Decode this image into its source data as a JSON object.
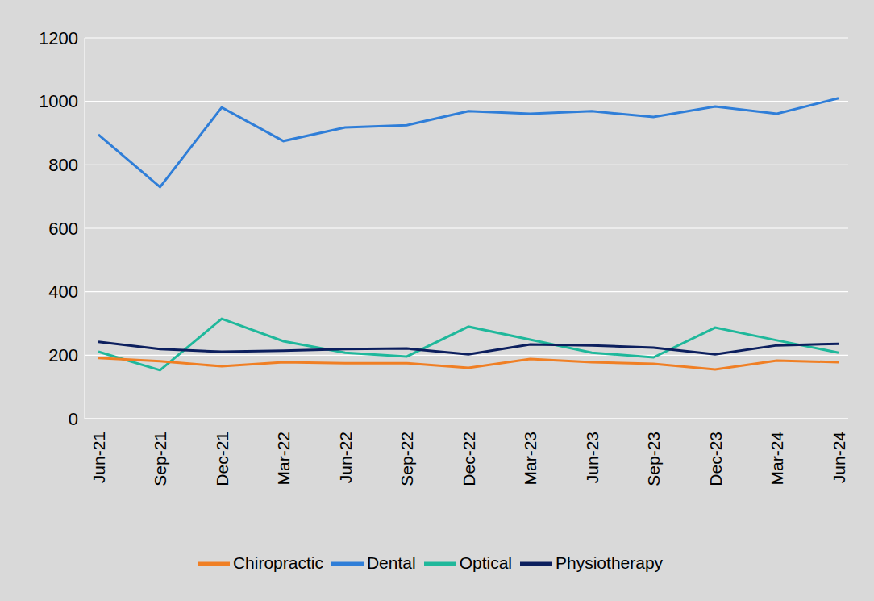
{
  "chart_data": {
    "type": "line",
    "categories": [
      "Jun-21",
      "Sep-21",
      "Dec-21",
      "Mar-22",
      "Jun-22",
      "Sep-22",
      "Dec-22",
      "Mar-23",
      "Jun-23",
      "Sep-23",
      "Dec-23",
      "Mar-24",
      "Jun-24"
    ],
    "series": [
      {
        "name": "Dental",
        "color": "#2f7ed8",
        "values": [
          895,
          730,
          981,
          875,
          918,
          925,
          969,
          961,
          969,
          951,
          984,
          961,
          1010
        ]
      },
      {
        "name": "Optical",
        "color": "#1fb89b",
        "values": [
          211,
          153,
          315,
          244,
          208,
          196,
          290,
          249,
          208,
          193,
          287,
          247,
          208
        ]
      },
      {
        "name": "Physiotherapy",
        "color": "#0c1f5e",
        "values": [
          242,
          219,
          211,
          214,
          219,
          221,
          203,
          234,
          231,
          224,
          203,
          231,
          236
        ]
      },
      {
        "name": "Chiropractic",
        "color": "#f07f24",
        "values": [
          191,
          181,
          165,
          178,
          175,
          175,
          160,
          188,
          178,
          173,
          155,
          183,
          178
        ]
      }
    ],
    "ylim": [
      0,
      1200
    ],
    "yticks": [
      0,
      200,
      400,
      600,
      800,
      1000,
      1200
    ],
    "grid": true,
    "legend": "bottom"
  }
}
